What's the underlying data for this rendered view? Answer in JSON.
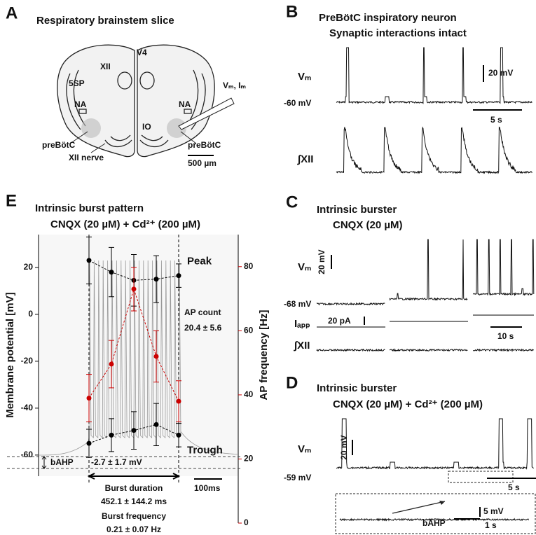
{
  "panels": {
    "A": {
      "letter": "A",
      "title": "Respiratory brainstem slice",
      "labels": [
        "V4",
        "XII",
        "5SP",
        "NA",
        "NA",
        "IO",
        "preBötC",
        "preBötC",
        "XII nerve"
      ],
      "electrode": "Vₘ, Iₘ",
      "scale": "500 µm"
    },
    "B": {
      "letter": "B",
      "title": [
        "PreBötC inspiratory neuron",
        "Synaptic interactions intact"
      ],
      "trace_labels": [
        "Vₘ",
        "∫XII"
      ],
      "baseline": "-60 mV",
      "scale_v": "20 mV",
      "scale_t": "5 s"
    },
    "C": {
      "letter": "C",
      "title": [
        "Intrinsic burster",
        "CNQX (20 µM)"
      ],
      "trace_labels": [
        "Vₘ",
        "Iₐₚₚ",
        "∫XII"
      ],
      "baseline": "-68 mV",
      "scale_v": "20 mV",
      "scale_i": "20 pA",
      "scale_t": "10 s"
    },
    "D": {
      "letter": "D",
      "title": [
        "Intrinsic burster",
        "CNQX (20 µM) + Cd²⁺ (200 µM)"
      ],
      "trace_labels": [
        "Vₘ"
      ],
      "baseline": "-59 mV",
      "scale_v": "20 mV",
      "scale_t": "5 s",
      "inset": {
        "scale_v": "5 mV",
        "scale_t": "1 s",
        "label": "bAHP"
      }
    }
  },
  "chart_data": {
    "type": "errorbar",
    "letter": "E",
    "title": "Intrinsic burst pattern",
    "subtitle": "CNQX (20 µM) + Cd²⁺ (200 µM)",
    "ylabel": "Membrane potential [mV]",
    "y2label": "AP frequency [Hz]",
    "categories": [
      null,
      null,
      null,
      null,
      null
    ],
    "series": [
      {
        "name": "Peak",
        "color": "#000000",
        "values": [
          23,
          18,
          14.5,
          15,
          16.5
        ],
        "errors": [
          10,
          10.5,
          11,
          10,
          5
        ]
      },
      {
        "name": "Trough",
        "color": "#000000",
        "values": [
          -55,
          -51.5,
          -49.5,
          -47,
          -51.5
        ],
        "errors": [
          6,
          7,
          8,
          9,
          5
        ]
      },
      {
        "color": "#cc0000",
        "axis": "y2",
        "values": [
          39,
          49.6,
          73,
          52,
          38
        ],
        "errors": [
          7.4,
          7.4,
          6.8,
          8,
          6.4
        ]
      }
    ],
    "ylim": [
      -69,
      34
    ],
    "yticks": [
      -60,
      -40,
      -20,
      0,
      20
    ],
    "y2lim": [
      0,
      90
    ],
    "y2ticks": [
      0,
      20,
      40,
      60,
      80
    ],
    "annotations": {
      "ap_count": [
        "AP count",
        "20.4 ± 5.6"
      ],
      "bahp": "bAHP",
      "bahp_value": "-2.7 ± 1.7 mV",
      "burst_duration": [
        "Burst duration",
        "452.1 ± 144.2 ms"
      ],
      "burst_frequency": [
        "Burst frequency",
        "0.21 ± 0.07 Hz"
      ],
      "time_scale": "100ms"
    }
  }
}
